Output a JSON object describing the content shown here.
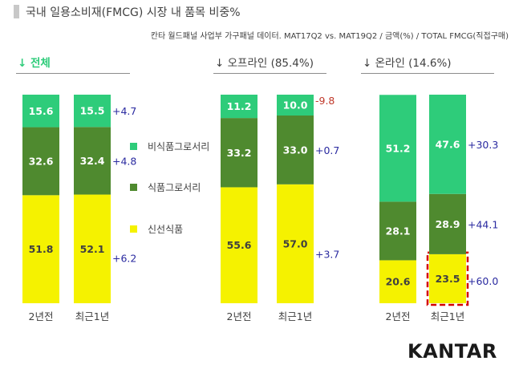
{
  "title": "국내 일용소비재(FMCG) 시장 내 품목 비중%",
  "subtitle": "칸타 월드패널 사업부 가구패널 데이터. MAT17Q2 vs. MAT19Q2 / 금액(%) / TOTAL FMCG(직접구매)",
  "logo": "KANTAR",
  "colors": {
    "non_food": "#2ecc7a",
    "food": "#4f8a2f",
    "fresh": "#f5f200",
    "positive_change": "#2a2aa0",
    "negative_change": "#c0392b",
    "highlight_border": "#d40000",
    "green_header": "#2ecc7a"
  },
  "chart_data": {
    "type": "bar",
    "stacked": true,
    "unit": "%",
    "ylim": [
      0,
      100
    ],
    "series_order": [
      "fresh",
      "food",
      "non_food"
    ],
    "legend": [
      {
        "key": "non_food",
        "label": "비식품그로서리"
      },
      {
        "key": "food",
        "label": "식품그로서리"
      },
      {
        "key": "fresh",
        "label": "신선식품"
      }
    ],
    "groups": [
      {
        "header": "↓ 전체",
        "header_color": "#2ecc7a",
        "bold": true,
        "categories": [
          "2년전",
          "최근1년"
        ],
        "values": {
          "non_food": [
            15.6,
            15.5
          ],
          "food": [
            32.6,
            32.4
          ],
          "fresh": [
            51.8,
            52.1
          ]
        },
        "changes": {
          "non_food": "+4.7",
          "food": "+4.8",
          "fresh": "+6.2"
        },
        "highlight": null
      },
      {
        "header": "↓ 오프라인 (85.4%)",
        "header_color": "#404040",
        "bold": false,
        "categories": [
          "2년전",
          "최근1년"
        ],
        "values": {
          "non_food": [
            11.2,
            10.0
          ],
          "food": [
            33.2,
            33.0
          ],
          "fresh": [
            55.6,
            57.0
          ]
        },
        "changes": {
          "non_food": "-9.8",
          "food": "+0.7",
          "fresh": "+3.7"
        },
        "highlight": null
      },
      {
        "header": "↓ 온라인 (14.6%)",
        "header_color": "#404040",
        "bold": false,
        "categories": [
          "2년전",
          "최근1년"
        ],
        "values": {
          "non_food": [
            51.2,
            47.6
          ],
          "food": [
            28.1,
            28.9
          ],
          "fresh": [
            20.6,
            23.5
          ]
        },
        "changes": {
          "non_food": "+30.3",
          "food": "+44.1",
          "fresh": "+60.0"
        },
        "highlight": {
          "bar": 1,
          "series": "fresh"
        }
      }
    ]
  }
}
